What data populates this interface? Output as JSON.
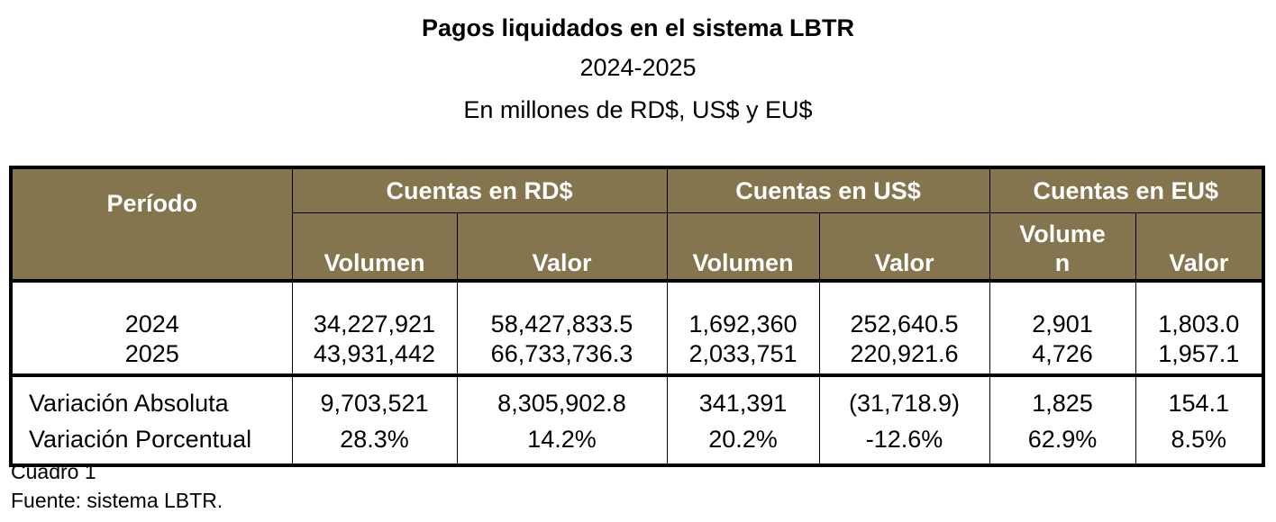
{
  "title": "Pagos liquidados en el sistema LBTR",
  "subtitle": "2024-2025",
  "units": "En millones de RD$, US$ y EU$",
  "table": {
    "period_header": "Período",
    "groups": [
      "Cuentas en RD$",
      "Cuentas en US$",
      "Cuentas en EU$"
    ],
    "subheaders": [
      "Volumen",
      "Valor",
      "Volumen",
      "Valor",
      "Volume n",
      "Valor"
    ],
    "rows": [
      {
        "label": "2024",
        "values": [
          "34,227,921",
          "58,427,833.5",
          "1,692,360",
          "252,640.5",
          "2,901",
          "1,803.0"
        ]
      },
      {
        "label": "2025",
        "values": [
          "43,931,442",
          "66,733,736.3",
          "2,033,751",
          "220,921.6",
          "4,726",
          "1,957.1"
        ]
      },
      {
        "label": "Variación Absoluta",
        "values": [
          "9,703,521",
          "8,305,902.8",
          "341,391",
          "(31,718.9)",
          "1,825",
          "154.1"
        ]
      },
      {
        "label": "Variación Porcentual",
        "values": [
          "28.3%",
          "14.2%",
          "20.2%",
          "-12.6%",
          "62.9%",
          "8.5%"
        ]
      }
    ]
  },
  "footer": {
    "caption": "Cuadro 1",
    "source": "Fuente: sistema LBTR."
  }
}
